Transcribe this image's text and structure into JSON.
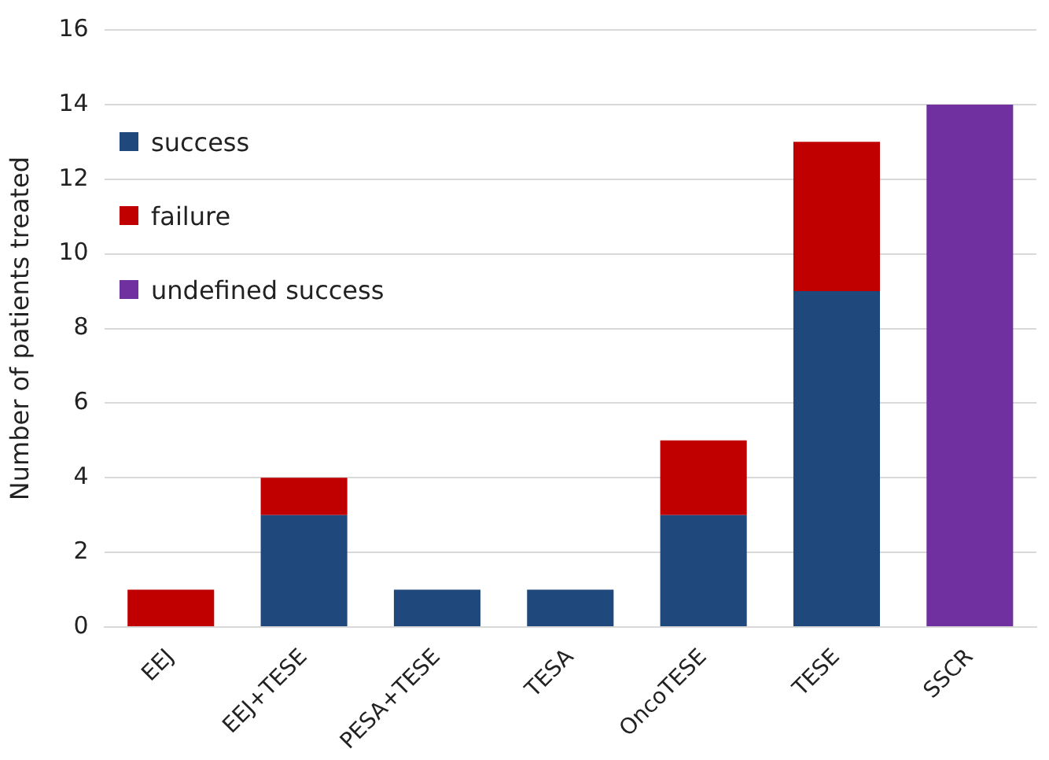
{
  "chart_data": {
    "type": "bar",
    "stacked": true,
    "ylabel": "Number of patients treated",
    "categories": [
      "EEJ",
      "EEJ+TESE",
      "PESA+TESE",
      "TESA",
      "OncoTESE",
      "TESE",
      "SSCR"
    ],
    "series": [
      {
        "name": "success",
        "color": "#1f497d",
        "values": [
          0,
          3,
          1,
          1,
          3,
          9,
          0
        ]
      },
      {
        "name": "failure",
        "color": "#c00000",
        "values": [
          1,
          1,
          0,
          0,
          2,
          4,
          0
        ]
      },
      {
        "name": "undefined success",
        "color": "#7030a0",
        "values": [
          0,
          0,
          0,
          0,
          0,
          0,
          14
        ]
      }
    ],
    "ylim": [
      0,
      16
    ],
    "yticks": [
      0,
      2,
      4,
      6,
      8,
      10,
      12,
      14,
      16
    ],
    "grid": "y",
    "legend": "top left"
  }
}
